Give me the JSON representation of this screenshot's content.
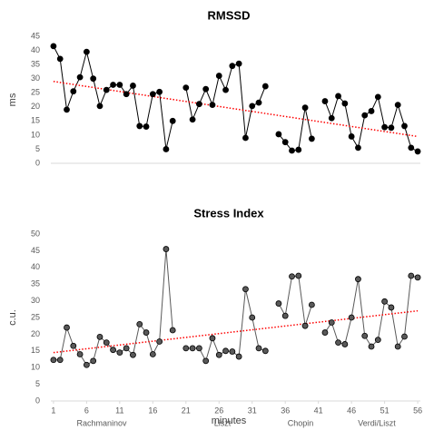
{
  "chart_data": [
    {
      "type": "line",
      "title": "RMSSD",
      "ylabel": "ms",
      "x": [
        1,
        2,
        3,
        4,
        5,
        6,
        7,
        8,
        9,
        10,
        11,
        12,
        13,
        14,
        15,
        16,
        17,
        18,
        19,
        20,
        21,
        22,
        23,
        24,
        25,
        26,
        27,
        28,
        29,
        30,
        31,
        32,
        33,
        34,
        35,
        36,
        37,
        38,
        39,
        40,
        41,
        42,
        43,
        44,
        45,
        46,
        47,
        48,
        49,
        50,
        51,
        52,
        53,
        54,
        55,
        56
      ],
      "series": [
        {
          "color": "#000000",
          "values": [
            41.5,
            37,
            19,
            25.5,
            30.5,
            39.5,
            30,
            20.3,
            26,
            27.8,
            27.8,
            24.5,
            27.5,
            13.2,
            13,
            24.5,
            25.3,
            5,
            15,
            null,
            26.8,
            15.5,
            21,
            26.3,
            20.7,
            31,
            26,
            34.5,
            35.3,
            9,
            20.3,
            21.5,
            27.3,
            null,
            10.3,
            7.5,
            4.5,
            4.8,
            19.7,
            8.7,
            null,
            22,
            16,
            23.8,
            21.2,
            9.5,
            5.5,
            17,
            18.5,
            23.5,
            12.8,
            12.6,
            20.7,
            13.2,
            5.5,
            4.2
          ]
        }
      ],
      "trendline": {
        "color": "#ff0000",
        "values": [
          29,
          9.5
        ]
      },
      "xlim": [
        0.6,
        56.4
      ],
      "ylim": [
        0,
        45
      ],
      "yticks": [
        0,
        5,
        10,
        15,
        20,
        25,
        30,
        35,
        40,
        45
      ]
    },
    {
      "type": "line",
      "title": "Stress Index",
      "ylabel": "c.u.",
      "xlabel": "minutes",
      "x": [
        1,
        2,
        3,
        4,
        5,
        6,
        7,
        8,
        9,
        10,
        11,
        12,
        13,
        14,
        15,
        16,
        17,
        18,
        19,
        20,
        21,
        22,
        23,
        24,
        25,
        26,
        27,
        28,
        29,
        30,
        31,
        32,
        33,
        34,
        35,
        36,
        37,
        38,
        39,
        40,
        41,
        42,
        43,
        44,
        45,
        46,
        47,
        48,
        49,
        50,
        51,
        52,
        53,
        54,
        55,
        56
      ],
      "series": [
        {
          "color": "#595959",
          "values": [
            12.3,
            12.3,
            22,
            16.5,
            14,
            10.8,
            12,
            19.2,
            17.5,
            15.3,
            14.5,
            15.8,
            13.8,
            23,
            20.5,
            14,
            17.8,
            45.5,
            21.2,
            null,
            15.8,
            15.8,
            15.8,
            12,
            18.8,
            13.8,
            15,
            14.8,
            13.3,
            33.5,
            25,
            15.8,
            15,
            null,
            29.2,
            25.5,
            37.3,
            37.5,
            22.5,
            28.8,
            null,
            20.5,
            23.5,
            17.5,
            17,
            25,
            36.5,
            19.5,
            16.3,
            18.3,
            29.8,
            28,
            16.3,
            19.3,
            37.5,
            37
          ]
        }
      ],
      "trendline": {
        "color": "#ff0000",
        "values": [
          14.5,
          27
        ]
      },
      "xlim": [
        0.6,
        56.4
      ],
      "xticks": [
        1,
        6,
        11,
        16,
        21,
        26,
        31,
        36,
        41,
        46,
        51,
        56
      ],
      "ylim": [
        0,
        50
      ],
      "yticks": [
        0,
        5,
        10,
        15,
        20,
        25,
        30,
        35,
        40,
        45,
        50
      ],
      "annotations": [
        "Rachmaninov",
        "Liszt",
        "Chopin",
        "Verdi/Liszt"
      ]
    }
  ]
}
